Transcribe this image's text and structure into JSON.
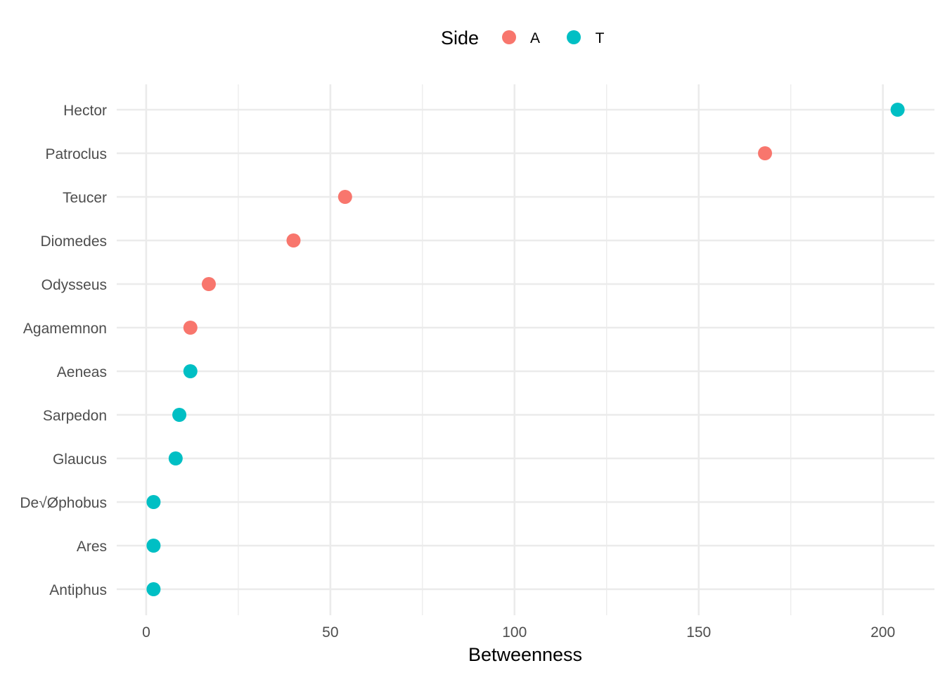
{
  "chart_data": {
    "type": "scatter",
    "title": "",
    "xlabel": "Betweenness",
    "ylabel": "",
    "xlim": [
      -8,
      214
    ],
    "x_ticks": [
      0,
      50,
      100,
      150,
      200
    ],
    "x_tick_labels": [
      "0",
      "50",
      "100",
      "150",
      "200"
    ],
    "categories": [
      "Hector",
      "Patroclus",
      "Teucer",
      "Diomedes",
      "Odysseus",
      "Agamemnon",
      "Aeneas",
      "Sarpedon",
      "Glaucus",
      "De√Øphobus",
      "Ares",
      "Antiphus"
    ],
    "grid": true,
    "legend": {
      "title": "Side",
      "position": "top",
      "entries": [
        {
          "label": "A",
          "color": "#F8766D"
        },
        {
          "label": "T",
          "color": "#00BFC4"
        }
      ]
    },
    "points": [
      {
        "name": "Hector",
        "value": 204,
        "side": "T"
      },
      {
        "name": "Patroclus",
        "value": 168,
        "side": "A"
      },
      {
        "name": "Teucer",
        "value": 54,
        "side": "A"
      },
      {
        "name": "Diomedes",
        "value": 40,
        "side": "A"
      },
      {
        "name": "Odysseus",
        "value": 17,
        "side": "A"
      },
      {
        "name": "Agamemnon",
        "value": 12,
        "side": "A"
      },
      {
        "name": "Aeneas",
        "value": 12,
        "side": "T"
      },
      {
        "name": "Sarpedon",
        "value": 9,
        "side": "T"
      },
      {
        "name": "Glaucus",
        "value": 8,
        "side": "T"
      },
      {
        "name": "De√Øphobus",
        "value": 2,
        "side": "T"
      },
      {
        "name": "Ares",
        "value": 2,
        "side": "T"
      },
      {
        "name": "Antiphus",
        "value": 2,
        "side": "T"
      }
    ]
  }
}
